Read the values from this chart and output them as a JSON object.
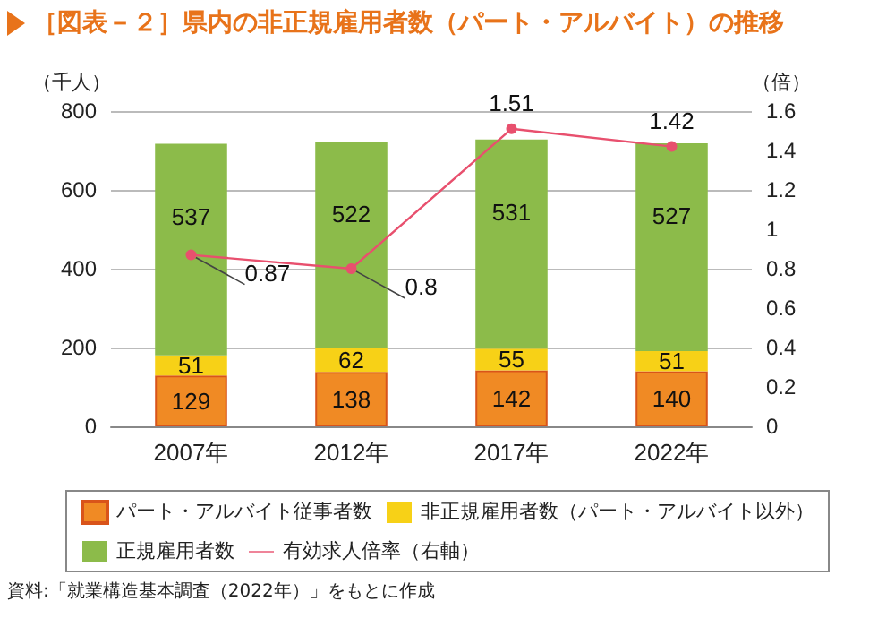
{
  "chart_data": {
    "type": "bar",
    "title": "［図表－２］県内の非正規雇用者数（パート・アルバイト）の推移",
    "ylabel": "（千人）",
    "y2label": "（倍）",
    "annotations": [
      "資料:「就業構造基本調査（2022年）」をもとに作成"
    ],
    "categories": [
      "2007年",
      "2012年",
      "2017年",
      "2022年"
    ],
    "stacked": true,
    "series": [
      {
        "name": "パート・アルバイト従事者数",
        "color": "#f08a24",
        "values": [
          129,
          138,
          142,
          140
        ]
      },
      {
        "name": "非正規雇用者数（パート・アルバイト以外）",
        "color": "#f7d117",
        "values": [
          51,
          62,
          55,
          51
        ]
      },
      {
        "name": "正規雇用者数",
        "color": "#8cbb4a",
        "values": [
          537,
          522,
          531,
          527
        ]
      },
      {
        "name": "有効求人倍率（右軸）",
        "type": "line",
        "axis": "y2",
        "color": "#e8506e",
        "values": [
          0.87,
          0.8,
          1.51,
          1.42
        ]
      }
    ],
    "ylim": [
      0,
      800
    ],
    "yticks": [
      0,
      200,
      400,
      600,
      800
    ],
    "y2lim": [
      0,
      1.6
    ],
    "y2ticks": [
      0,
      0.2,
      0.4,
      0.6,
      0.8,
      1,
      1.2,
      1.4,
      1.6
    ],
    "grid": "y",
    "legend": "bottom",
    "marker": "circle",
    "line_style": "solid",
    "data_labels": true
  }
}
